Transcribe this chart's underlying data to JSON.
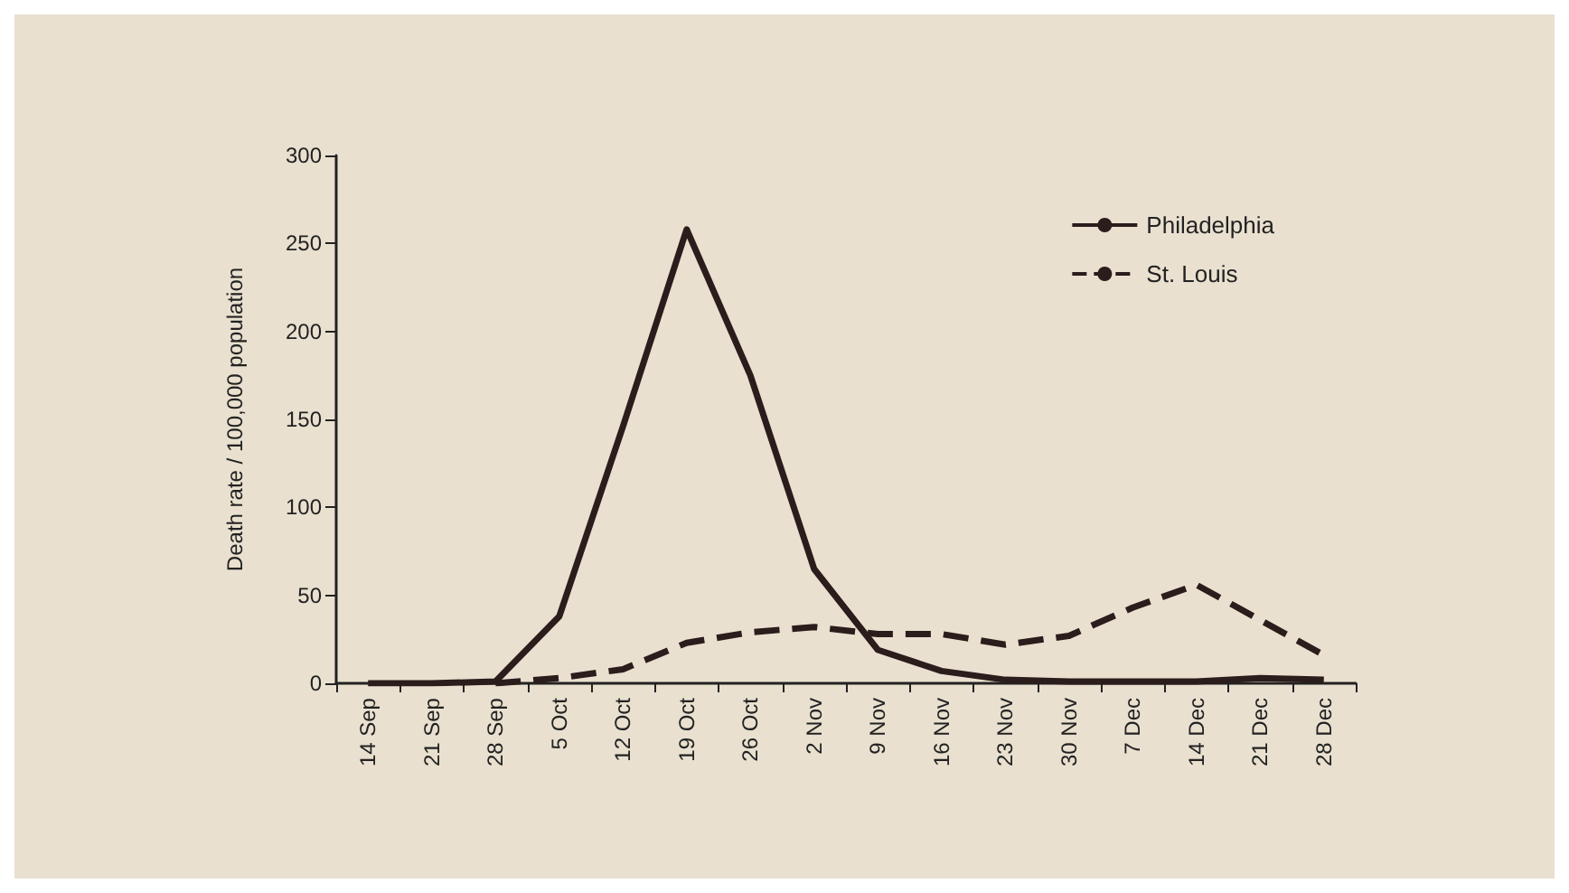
{
  "chart_data": {
    "type": "line",
    "ylabel": "Death rate / 100,000 population",
    "categories": [
      "14 Sep",
      "21 Sep",
      "28 Sep",
      "5 Oct",
      "12 Oct",
      "19 Oct",
      "26 Oct",
      "2 Nov",
      "9 Nov",
      "16 Nov",
      "23 Nov",
      "30 Nov",
      "7 Dec",
      "14 Dec",
      "21 Dec",
      "28 Dec"
    ],
    "series": [
      {
        "name": "Philadelphia",
        "color": "#2b1d1c",
        "line_style": "solid",
        "values": [
          0,
          0,
          1,
          38,
          146,
          258,
          175,
          65,
          19,
          7,
          2,
          1,
          1,
          1,
          3,
          2
        ]
      },
      {
        "name": "St. Louis",
        "color": "#2b1d1c",
        "line_style": "dashed",
        "values": [
          null,
          null,
          0,
          3,
          8,
          23,
          29,
          32,
          28,
          28,
          22,
          27,
          43,
          56,
          36,
          16
        ]
      }
    ],
    "ylim": [
      0,
      300
    ],
    "yticks": [
      0,
      50,
      100,
      150,
      200,
      250,
      300
    ],
    "grid": false,
    "legend": "top right",
    "marker": "none"
  }
}
